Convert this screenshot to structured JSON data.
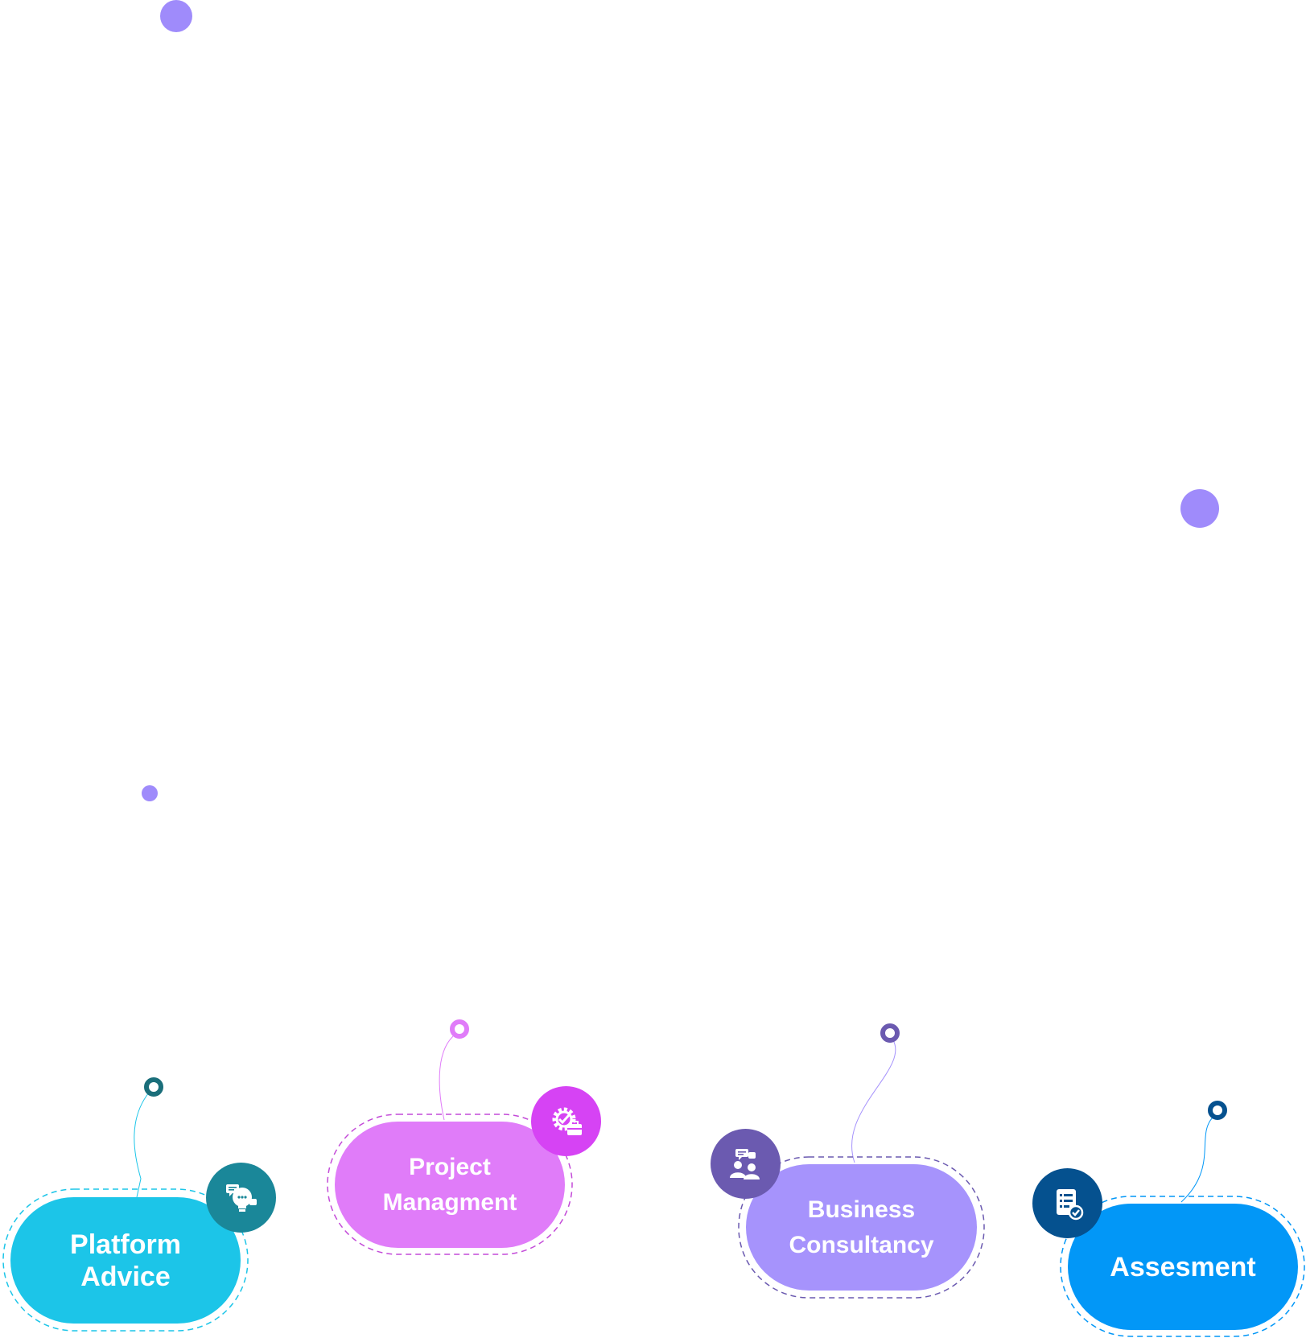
{
  "services": [
    {
      "id": "platform-advice",
      "label": "Platform\nAdvice",
      "color": "#1CC5E8",
      "badge_color": "#1A8799",
      "icon": "lightbulb-chat-icon"
    },
    {
      "id": "project-management",
      "label": "Project\nManagment",
      "color": "#E07CF9",
      "badge_color": "#D643F4",
      "icon": "gear-check-briefcase-icon"
    },
    {
      "id": "business-consultancy",
      "label": "Business\nConsultancy",
      "color": "#A693FC",
      "badge_color": "#6B5AB0",
      "icon": "consultation-people-icon"
    },
    {
      "id": "assessment",
      "label": "Assesment",
      "color": "#0297F7",
      "badge_color": "#05518F",
      "icon": "checklist-document-icon"
    }
  ],
  "decor_color": "#9F8BFB"
}
